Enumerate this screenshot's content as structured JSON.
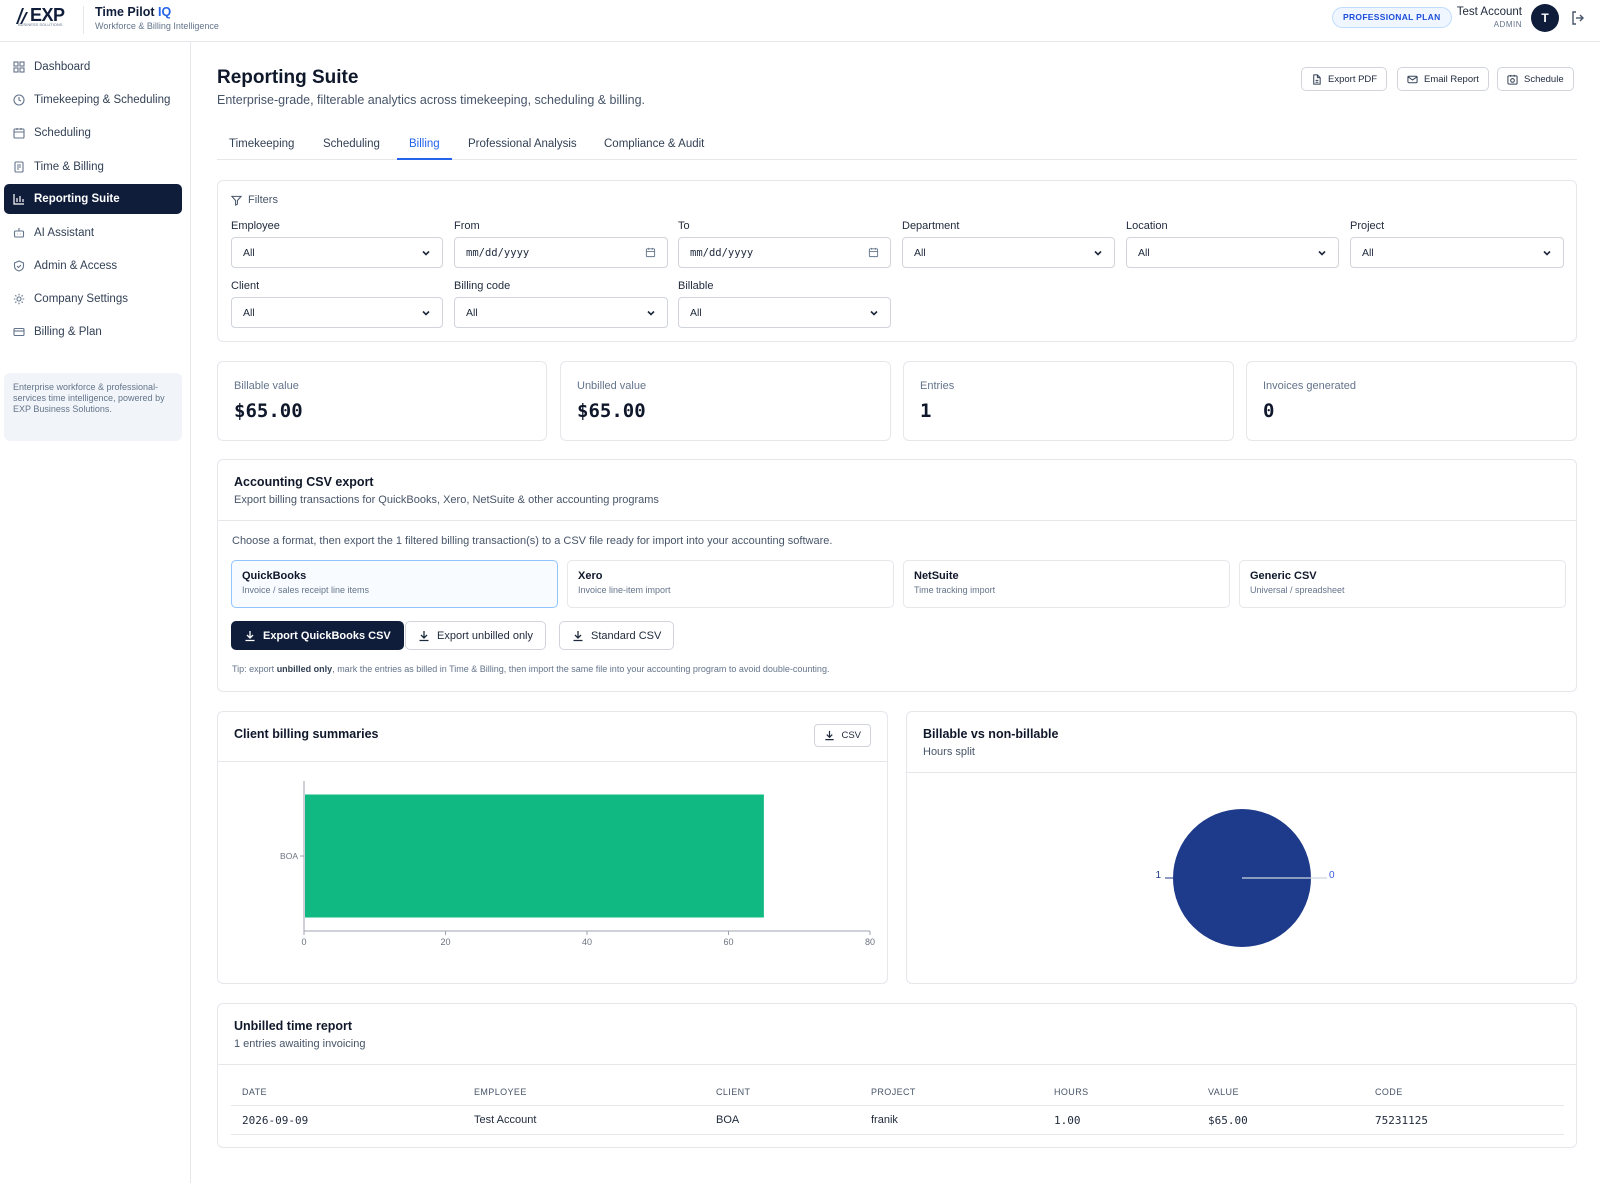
{
  "header": {
    "logo_text": "EXP",
    "logo_subtext": "BUSINESS SOLUTIONS",
    "app_name": "Time Pilot",
    "app_name_accent": "IQ",
    "app_tagline": "Workforce & Billing Intelligence",
    "plan_badge": "PROFESSIONAL PLAN",
    "account_name": "Test Account",
    "account_role": "ADMIN",
    "avatar_initial": "T"
  },
  "sidebar": {
    "items": [
      {
        "label": "Dashboard",
        "icon": "grid-icon"
      },
      {
        "label": "Timekeeping & Scheduling",
        "icon": "clock-icon"
      },
      {
        "label": "Scheduling",
        "icon": "calendar-icon"
      },
      {
        "label": "Time & Billing",
        "icon": "receipt-icon"
      },
      {
        "label": "Reporting Suite",
        "icon": "bar-chart-icon",
        "active": true
      },
      {
        "label": "AI Assistant",
        "icon": "bot-icon"
      },
      {
        "label": "Admin & Access",
        "icon": "shield-icon"
      },
      {
        "label": "Company Settings",
        "icon": "gear-icon"
      },
      {
        "label": "Billing & Plan",
        "icon": "credit-card-icon"
      }
    ],
    "note": "Enterprise workforce & professional-services time intelligence, powered by EXP Business Solutions."
  },
  "page": {
    "title": "Reporting Suite",
    "subtitle": "Enterprise-grade, filterable analytics across timekeeping, scheduling & billing.",
    "actions": {
      "export_pdf": "Export PDF",
      "email_report": "Email Report",
      "schedule": "Schedule"
    },
    "tabs": [
      "Timekeeping",
      "Scheduling",
      "Billing",
      "Professional Analysis",
      "Compliance & Audit"
    ],
    "active_tab": "Billing"
  },
  "filters": {
    "title": "Filters",
    "employee": {
      "label": "Employee",
      "value": "All"
    },
    "from": {
      "label": "From",
      "value": "mm/dd/yyyy"
    },
    "to": {
      "label": "To",
      "value": "mm/dd/yyyy"
    },
    "department": {
      "label": "Department",
      "value": "All"
    },
    "location": {
      "label": "Location",
      "value": "All"
    },
    "project": {
      "label": "Project",
      "value": "All"
    },
    "client": {
      "label": "Client",
      "value": "All"
    },
    "billing_code": {
      "label": "Billing code",
      "value": "All"
    },
    "billable": {
      "label": "Billable",
      "value": "All"
    }
  },
  "stats": [
    {
      "label": "Billable value",
      "value": "$65.00"
    },
    {
      "label": "Unbilled value",
      "value": "$65.00"
    },
    {
      "label": "Entries",
      "value": "1"
    },
    {
      "label": "Invoices generated",
      "value": "0"
    }
  ],
  "csv_export": {
    "title": "Accounting CSV export",
    "subtitle": "Export billing transactions for QuickBooks, Xero, NetSuite & other accounting programs",
    "instruction": "Choose a format, then export the 1 filtered billing transaction(s) to a CSV file ready for import into your accounting software.",
    "formats": [
      {
        "title": "QuickBooks",
        "desc": "Invoice / sales receipt line items",
        "selected": true
      },
      {
        "title": "Xero",
        "desc": "Invoice line-item import"
      },
      {
        "title": "NetSuite",
        "desc": "Time tracking import"
      },
      {
        "title": "Generic CSV",
        "desc": "Universal / spreadsheet"
      }
    ],
    "buttons": {
      "primary": "Export QuickBooks CSV",
      "unbilled": "Export unbilled only",
      "standard": "Standard CSV"
    },
    "tip_prefix": "Tip: export ",
    "tip_bold": "unbilled only",
    "tip_suffix": ", mark the entries as billed in Time & Billing, then import the same file into your accounting program to avoid double-counting."
  },
  "client_summary": {
    "title": "Client billing summaries",
    "csv_label": "CSV"
  },
  "billable_split": {
    "title": "Billable vs non-billable",
    "subtitle": "Hours split"
  },
  "chart_data": [
    {
      "type": "bar",
      "orientation": "horizontal",
      "title": "Client billing summaries",
      "categories": [
        "BOA"
      ],
      "values": [
        65
      ],
      "xlim": [
        0,
        80
      ],
      "xticks": [
        0,
        20,
        40,
        60,
        80
      ],
      "color": "#10b981"
    },
    {
      "type": "pie",
      "title": "Billable vs non-billable",
      "labels": [
        "1",
        "0"
      ],
      "values": [
        1,
        0
      ],
      "colors": [
        "#1e3a8a",
        "#94a3b8"
      ]
    }
  ],
  "unbilled": {
    "title": "Unbilled time report",
    "subtitle": "1 entries awaiting invoicing",
    "columns": [
      "DATE",
      "EMPLOYEE",
      "CLIENT",
      "PROJECT",
      "HOURS",
      "VALUE",
      "CODE"
    ],
    "rows": [
      [
        "2026-09-09",
        "Test Account",
        "BOA",
        "franik",
        "1.00",
        "$65.00",
        "75231125"
      ]
    ]
  }
}
